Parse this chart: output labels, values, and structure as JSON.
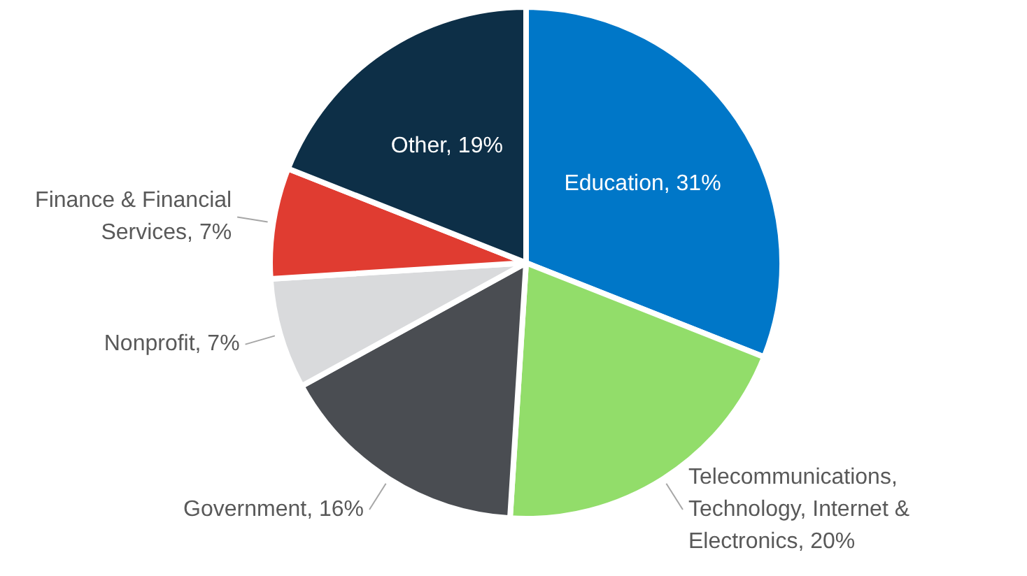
{
  "chart_data": {
    "type": "pie",
    "categories": [
      "Education",
      "Telecommunications, Technology, Internet & Electronics",
      "Government",
      "Nonprofit",
      "Finance & Financial Services",
      "Other"
    ],
    "values": [
      31,
      20,
      16,
      7,
      7,
      19
    ],
    "colors": [
      "#0077c8",
      "#92dd6a",
      "#4a4d52",
      "#d9dadc",
      "#e03c31",
      "#0d2f47"
    ],
    "value_labels": [
      "31%",
      "20%",
      "16%",
      "7%",
      "7%",
      "19%"
    ],
    "legend": false
  }
}
